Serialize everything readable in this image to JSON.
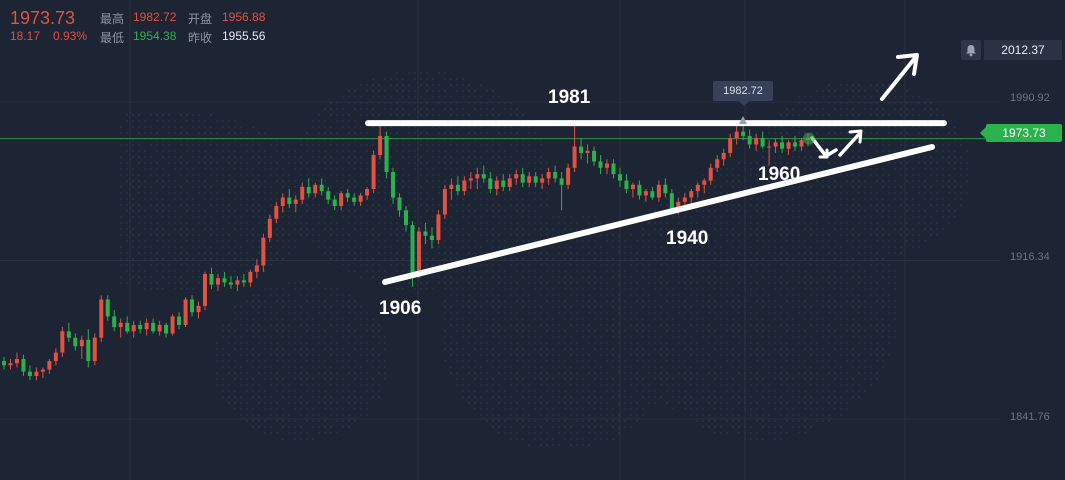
{
  "quote": {
    "price": "1973.73",
    "change": "18.17",
    "change_pct": "0.93%",
    "high_label": "最高",
    "high": "1982.72",
    "open_label": "开盘",
    "open": "1956.88",
    "low_label": "最低",
    "low": "1954.38",
    "prev_close_label": "昨收",
    "prev_close": "1955.56"
  },
  "alert_price": "2012.37",
  "current_price_tag": "1973.73",
  "high_marker_tag": "1982.72",
  "colors": {
    "up": "#e15241",
    "down": "#2bb24c",
    "background": "#1d2433",
    "grid": "#2a3142"
  },
  "icons": [
    "bell-icon"
  ],
  "chart_data": {
    "type": "candlestick",
    "y_axis_ticks": [
      {
        "label": "1990.92",
        "value": 1990.92
      },
      {
        "label": "1916.34",
        "value": 1916.34
      },
      {
        "label": "1841.76",
        "value": 1841.76
      }
    ],
    "ylim": [
      1813,
      2039
    ],
    "grid": true,
    "current_price": 1973.73,
    "annotations": [
      {
        "text": "1981",
        "kind": "horizontal-resistance",
        "value": 1981
      },
      {
        "text": "1906",
        "kind": "trendline-start",
        "value": 1906
      },
      {
        "text": "1940",
        "kind": "ascending-support",
        "value": 1940
      },
      {
        "text": "1960",
        "kind": "ascending-support",
        "value": 1960
      }
    ],
    "candles_ohlc": [
      [
        1869,
        1871,
        1865,
        1867
      ],
      [
        1867,
        1870,
        1865,
        1868
      ],
      [
        1868,
        1873,
        1866,
        1870
      ],
      [
        1870,
        1872,
        1862,
        1864
      ],
      [
        1864,
        1867,
        1860,
        1862
      ],
      [
        1862,
        1866,
        1860,
        1864
      ],
      [
        1864,
        1866,
        1861,
        1865
      ],
      [
        1865,
        1870,
        1863,
        1869
      ],
      [
        1869,
        1875,
        1867,
        1873
      ],
      [
        1873,
        1885,
        1871,
        1883
      ],
      [
        1883,
        1887,
        1878,
        1880
      ],
      [
        1880,
        1882,
        1874,
        1876
      ],
      [
        1876,
        1881,
        1870,
        1879
      ],
      [
        1879,
        1884,
        1866,
        1869
      ],
      [
        1869,
        1882,
        1867,
        1880
      ],
      [
        1880,
        1900,
        1878,
        1898
      ],
      [
        1898,
        1900,
        1888,
        1890
      ],
      [
        1890,
        1893,
        1883,
        1885
      ],
      [
        1885,
        1889,
        1880,
        1887
      ],
      [
        1887,
        1890,
        1882,
        1883
      ],
      [
        1883,
        1888,
        1880,
        1886
      ],
      [
        1886,
        1888,
        1882,
        1884
      ],
      [
        1884,
        1889,
        1881,
        1887
      ],
      [
        1887,
        1889,
        1882,
        1883
      ],
      [
        1883,
        1888,
        1881,
        1886
      ],
      [
        1886,
        1887,
        1880,
        1882
      ],
      [
        1882,
        1891,
        1881,
        1890
      ],
      [
        1890,
        1892,
        1884,
        1886
      ],
      [
        1886,
        1899,
        1885,
        1898
      ],
      [
        1898,
        1900,
        1890,
        1892
      ],
      [
        1892,
        1897,
        1889,
        1895
      ],
      [
        1895,
        1911,
        1893,
        1910
      ],
      [
        1910,
        1913,
        1903,
        1905
      ],
      [
        1905,
        1910,
        1902,
        1908
      ],
      [
        1908,
        1911,
        1904,
        1906
      ],
      [
        1906,
        1909,
        1903,
        1905
      ],
      [
        1905,
        1909,
        1902,
        1907
      ],
      [
        1907,
        1910,
        1904,
        1906
      ],
      [
        1906,
        1912,
        1904,
        1911
      ],
      [
        1911,
        1917,
        1908,
        1914
      ],
      [
        1914,
        1929,
        1911,
        1927
      ],
      [
        1927,
        1938,
        1925,
        1936
      ],
      [
        1936,
        1944,
        1934,
        1942
      ],
      [
        1942,
        1948,
        1939,
        1946
      ],
      [
        1946,
        1950,
        1941,
        1943
      ],
      [
        1943,
        1947,
        1939,
        1945
      ],
      [
        1945,
        1953,
        1943,
        1951
      ],
      [
        1951,
        1955,
        1946,
        1948
      ],
      [
        1948,
        1953,
        1946,
        1952
      ],
      [
        1952,
        1955,
        1947,
        1949
      ],
      [
        1949,
        1951,
        1943,
        1945
      ],
      [
        1945,
        1947,
        1940,
        1942
      ],
      [
        1942,
        1949,
        1940,
        1948
      ],
      [
        1948,
        1950,
        1944,
        1946
      ],
      [
        1946,
        1948,
        1942,
        1944
      ],
      [
        1944,
        1948,
        1942,
        1947
      ],
      [
        1947,
        1951,
        1945,
        1950
      ],
      [
        1950,
        1968,
        1948,
        1966
      ],
      [
        1966,
        1982,
        1964,
        1975
      ],
      [
        1975,
        1977,
        1955,
        1958
      ],
      [
        1958,
        1960,
        1943,
        1946
      ],
      [
        1946,
        1948,
        1937,
        1940
      ],
      [
        1940,
        1942,
        1930,
        1933
      ],
      [
        1933,
        1935,
        1904,
        1910
      ],
      [
        1910,
        1932,
        1908,
        1930
      ],
      [
        1930,
        1934,
        1924,
        1928
      ],
      [
        1928,
        1932,
        1922,
        1926
      ],
      [
        1926,
        1940,
        1924,
        1938
      ],
      [
        1938,
        1952,
        1936,
        1950
      ],
      [
        1950,
        1955,
        1945,
        1952
      ],
      [
        1952,
        1956,
        1947,
        1949
      ],
      [
        1949,
        1956,
        1947,
        1954
      ],
      [
        1954,
        1958,
        1950,
        1955
      ],
      [
        1955,
        1960,
        1950,
        1957
      ],
      [
        1957,
        1961,
        1953,
        1955
      ],
      [
        1955,
        1958,
        1948,
        1950
      ],
      [
        1950,
        1956,
        1947,
        1954
      ],
      [
        1954,
        1957,
        1949,
        1951
      ],
      [
        1951,
        1957,
        1949,
        1955
      ],
      [
        1955,
        1959,
        1952,
        1957
      ],
      [
        1957,
        1960,
        1951,
        1953
      ],
      [
        1953,
        1958,
        1951,
        1956
      ],
      [
        1956,
        1958,
        1951,
        1953
      ],
      [
        1953,
        1957,
        1950,
        1955
      ],
      [
        1955,
        1960,
        1952,
        1958
      ],
      [
        1958,
        1961,
        1953,
        1955
      ],
      [
        1955,
        1958,
        1940,
        1952
      ],
      [
        1952,
        1962,
        1950,
        1960
      ],
      [
        1960,
        1982,
        1958,
        1970
      ],
      [
        1970,
        1974,
        1964,
        1967
      ],
      [
        1967,
        1971,
        1962,
        1968
      ],
      [
        1968,
        1970,
        1961,
        1963
      ],
      [
        1963,
        1966,
        1957,
        1960
      ],
      [
        1960,
        1964,
        1957,
        1962
      ],
      [
        1962,
        1964,
        1955,
        1957
      ],
      [
        1957,
        1960,
        1951,
        1954
      ],
      [
        1954,
        1957,
        1948,
        1950
      ],
      [
        1950,
        1953,
        1946,
        1952
      ],
      [
        1952,
        1954,
        1945,
        1947
      ],
      [
        1947,
        1950,
        1944,
        1949
      ],
      [
        1949,
        1951,
        1945,
        1946
      ],
      [
        1946,
        1954,
        1944,
        1952
      ],
      [
        1952,
        1955,
        1946,
        1948
      ],
      [
        1948,
        1950,
        1938,
        1940
      ],
      [
        1940,
        1946,
        1938,
        1944
      ],
      [
        1944,
        1948,
        1941,
        1946
      ],
      [
        1946,
        1950,
        1943,
        1949
      ],
      [
        1949,
        1953,
        1946,
        1952
      ],
      [
        1952,
        1955,
        1948,
        1954
      ],
      [
        1954,
        1962,
        1952,
        1960
      ],
      [
        1960,
        1966,
        1958,
        1964
      ],
      [
        1964,
        1969,
        1961,
        1967
      ],
      [
        1967,
        1976,
        1965,
        1974
      ],
      [
        1974,
        1980,
        1971,
        1977
      ],
      [
        1977,
        1983,
        1973,
        1975
      ],
      [
        1975,
        1978,
        1969,
        1971
      ],
      [
        1971,
        1976,
        1968,
        1974
      ],
      [
        1974,
        1977,
        1969,
        1970
      ],
      [
        1970,
        1973,
        1961,
        1970
      ],
      [
        1970,
        1974,
        1967,
        1972
      ],
      [
        1972,
        1975,
        1967,
        1969
      ],
      [
        1969,
        1973,
        1966,
        1972
      ],
      [
        1972,
        1975,
        1968,
        1970
      ],
      [
        1970,
        1974,
        1968,
        1973
      ],
      [
        1973,
        1976,
        1970,
        1974
      ]
    ]
  }
}
